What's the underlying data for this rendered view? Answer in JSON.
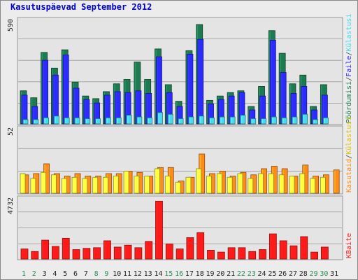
{
  "page": {
    "title": "Kasutuspäevad September 2012"
  },
  "colors": {
    "background": "#ececec",
    "panel": "#e8e8e8",
    "pageviews": "#1e7a50",
    "files": "#2b2bff",
    "visits": "#46d9f0",
    "kbytes": "#ff1a1a",
    "arrivals": "#ff8c1a",
    "unique_visitors": "#ffff40",
    "day_weekday": "#1a6e1a",
    "day_weekend": "#2e8b57"
  },
  "chart_data": [
    {
      "type": "bar",
      "title": "Kasutuspäevad September 2012",
      "categories": [
        "1",
        "2",
        "3",
        "4",
        "5",
        "6",
        "7",
        "8",
        "9",
        "10",
        "11",
        "12",
        "13",
        "14",
        "15",
        "16",
        "17",
        "18",
        "19",
        "20",
        "21",
        "22",
        "23",
        "24",
        "25",
        "26",
        "27",
        "28",
        "29",
        "30",
        "31"
      ],
      "x_label_colors": [
        "day_weekend",
        "day_weekend",
        "default",
        "default",
        "default",
        "default",
        "default",
        "day_weekend",
        "day_weekend",
        "default",
        "default",
        "default",
        "default",
        "default",
        "day_weekend",
        "day_weekend",
        "default",
        "default",
        "default",
        "default",
        "default",
        "day_weekend",
        "day_weekend",
        "default",
        "default",
        "default",
        "default",
        "default",
        "day_weekend",
        "day_weekend",
        "default"
      ],
      "y_max_label": "590",
      "ymax": 590,
      "right_label": {
        "parts": [
          "Pöördumisi",
          "/",
          "Faile",
          "/",
          "Külastusi"
        ],
        "colors": [
          "#1e7a50",
          "#444444",
          "#2b2bff",
          "#444444",
          "#46d9f0"
        ]
      },
      "series": [
        {
          "name": "Pöördumisi",
          "values": [
            190,
            150,
            410,
            0,
            425,
            0,
            0,
            0,
            0,
            0,
            0,
            0,
            0,
            0,
            0,
            0,
            0,
            0,
            0,
            0,
            0,
            0,
            0,
            0,
            0,
            0,
            0,
            0,
            0,
            0,
            0
          ]
        },
        {
          "name": "Faile",
          "values": [
            165,
            100,
            365,
            280,
            395,
            205,
            140,
            120,
            165,
            185,
            180,
            190,
            175,
            385,
            180,
            100,
            400,
            485,
            115,
            140,
            160,
            180,
            80,
            160,
            480,
            295,
            175,
            215,
            80,
            165,
            0
          ]
        },
        {
          "name": "Külastusi",
          "values": [
            25,
            25,
            35,
            45,
            35,
            35,
            30,
            30,
            35,
            35,
            50,
            40,
            35,
            65,
            55,
            30,
            40,
            45,
            35,
            40,
            40,
            50,
            30,
            30,
            40,
            35,
            40,
            55,
            25,
            35,
            0
          ]
        }
      ],
      "pageviews_total": [
        190,
        150,
        410,
        320,
        425,
        240,
        160,
        145,
        185,
        230,
        255,
        355,
        255,
        430,
        225,
        130,
        420,
        570,
        135,
        160,
        180,
        190,
        100,
        215,
        535,
        405,
        230,
        280,
        100,
        225,
        0
      ]
    },
    {
      "type": "bar",
      "y_max_label": "52",
      "ymax": 52,
      "right_label": {
        "parts": [
          "Kasutaid",
          "/",
          "Külastusi"
        ],
        "colors": [
          "#ff8c1a",
          "#444444",
          "#e0c000"
        ]
      },
      "series": [
        {
          "name": "Kasutaid",
          "values": [
            15,
            16,
            24,
            16,
            14,
            16,
            14,
            14,
            16,
            16,
            18,
            17,
            14,
            21,
            21,
            10,
            13,
            32,
            16,
            18,
            14,
            17,
            15,
            20,
            22,
            20,
            14,
            23,
            14,
            15,
            19
          ]
        },
        {
          "name": "Külastusi",
          "values": [
            16,
            12,
            17,
            15,
            12,
            13,
            12,
            13,
            13,
            14,
            18,
            14,
            14,
            20,
            14,
            9,
            13,
            20,
            14,
            16,
            13,
            16,
            12,
            16,
            16,
            15,
            14,
            16,
            12,
            13,
            0
          ]
        }
      ]
    },
    {
      "type": "bar",
      "y_max_label": "4732",
      "ymax": 4732,
      "right_label": {
        "parts": [
          "KBaite"
        ],
        "colors": [
          "#ff1a1a"
        ]
      },
      "series": [
        {
          "name": "KBaite",
          "values": [
            800,
            600,
            1500,
            1000,
            1650,
            750,
            850,
            900,
            1450,
            950,
            1100,
            900,
            1400,
            4600,
            1200,
            800,
            1700,
            2100,
            700,
            550,
            900,
            900,
            600,
            750,
            2000,
            1450,
            1050,
            1780,
            550,
            950,
            0
          ]
        }
      ]
    }
  ]
}
